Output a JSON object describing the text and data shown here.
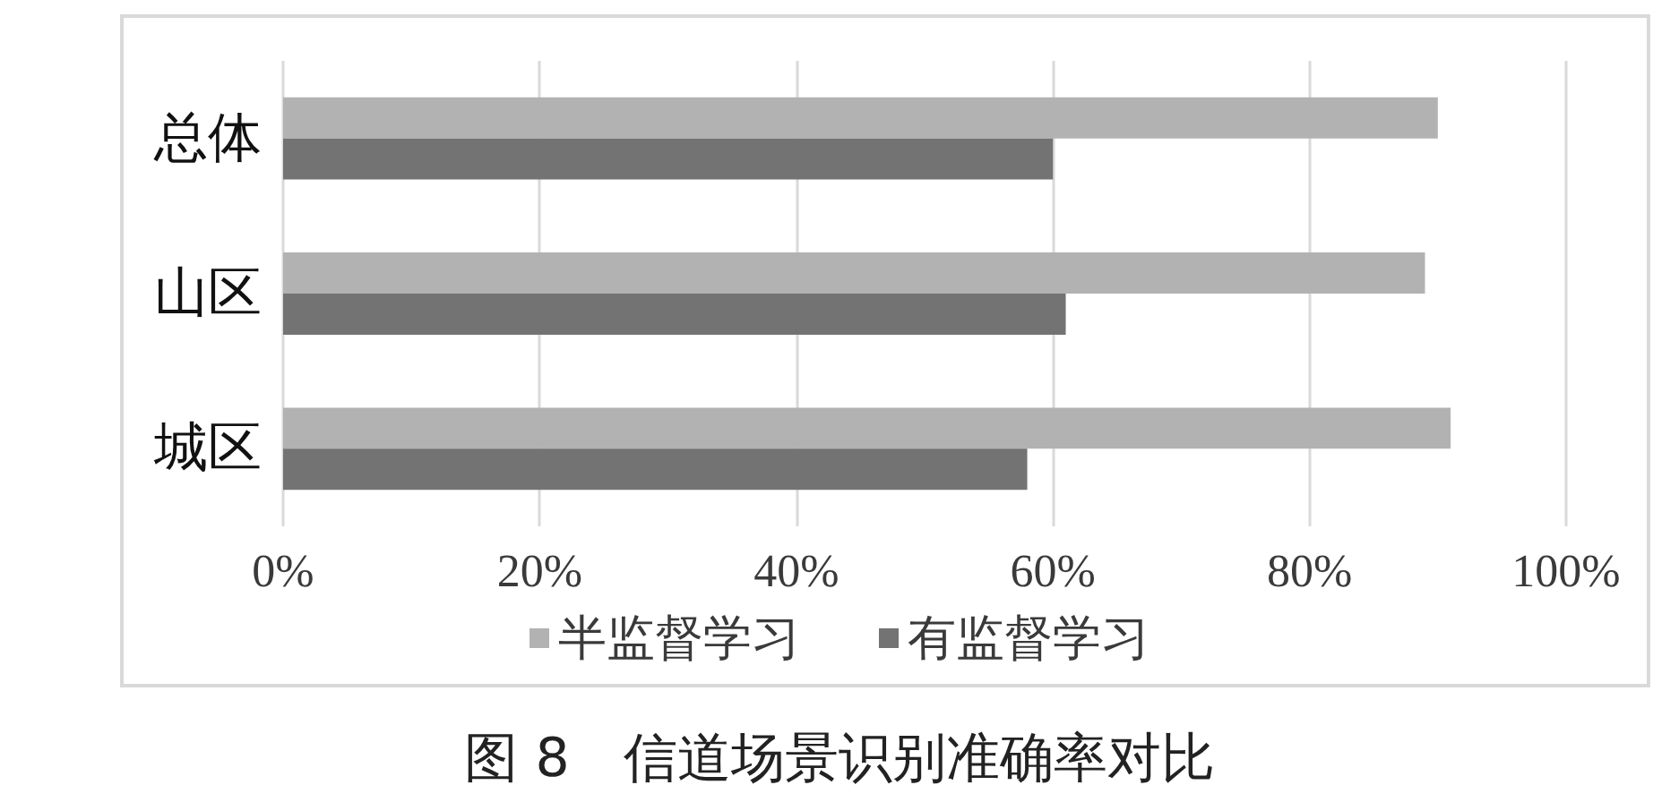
{
  "chart_data": {
    "type": "bar",
    "orientation": "horizontal",
    "title": "图 8　信道场景识别准确率对比",
    "categories": [
      "总体",
      "山区",
      "城区"
    ],
    "series": [
      {
        "name": "半监督学习",
        "color": "#b2b2b2",
        "values": [
          90,
          89,
          91
        ]
      },
      {
        "name": "有监督学习",
        "color": "#737373",
        "values": [
          60,
          61,
          58
        ]
      }
    ],
    "xlim": [
      0,
      100
    ],
    "xticks": [
      {
        "value": 0,
        "label": "0%"
      },
      {
        "value": 20,
        "label": "20%"
      },
      {
        "value": 40,
        "label": "40%"
      },
      {
        "value": 60,
        "label": "60%"
      },
      {
        "value": 80,
        "label": "80%"
      },
      {
        "value": 100,
        "label": "100%"
      }
    ],
    "grid": "x",
    "legend": "bottom"
  }
}
